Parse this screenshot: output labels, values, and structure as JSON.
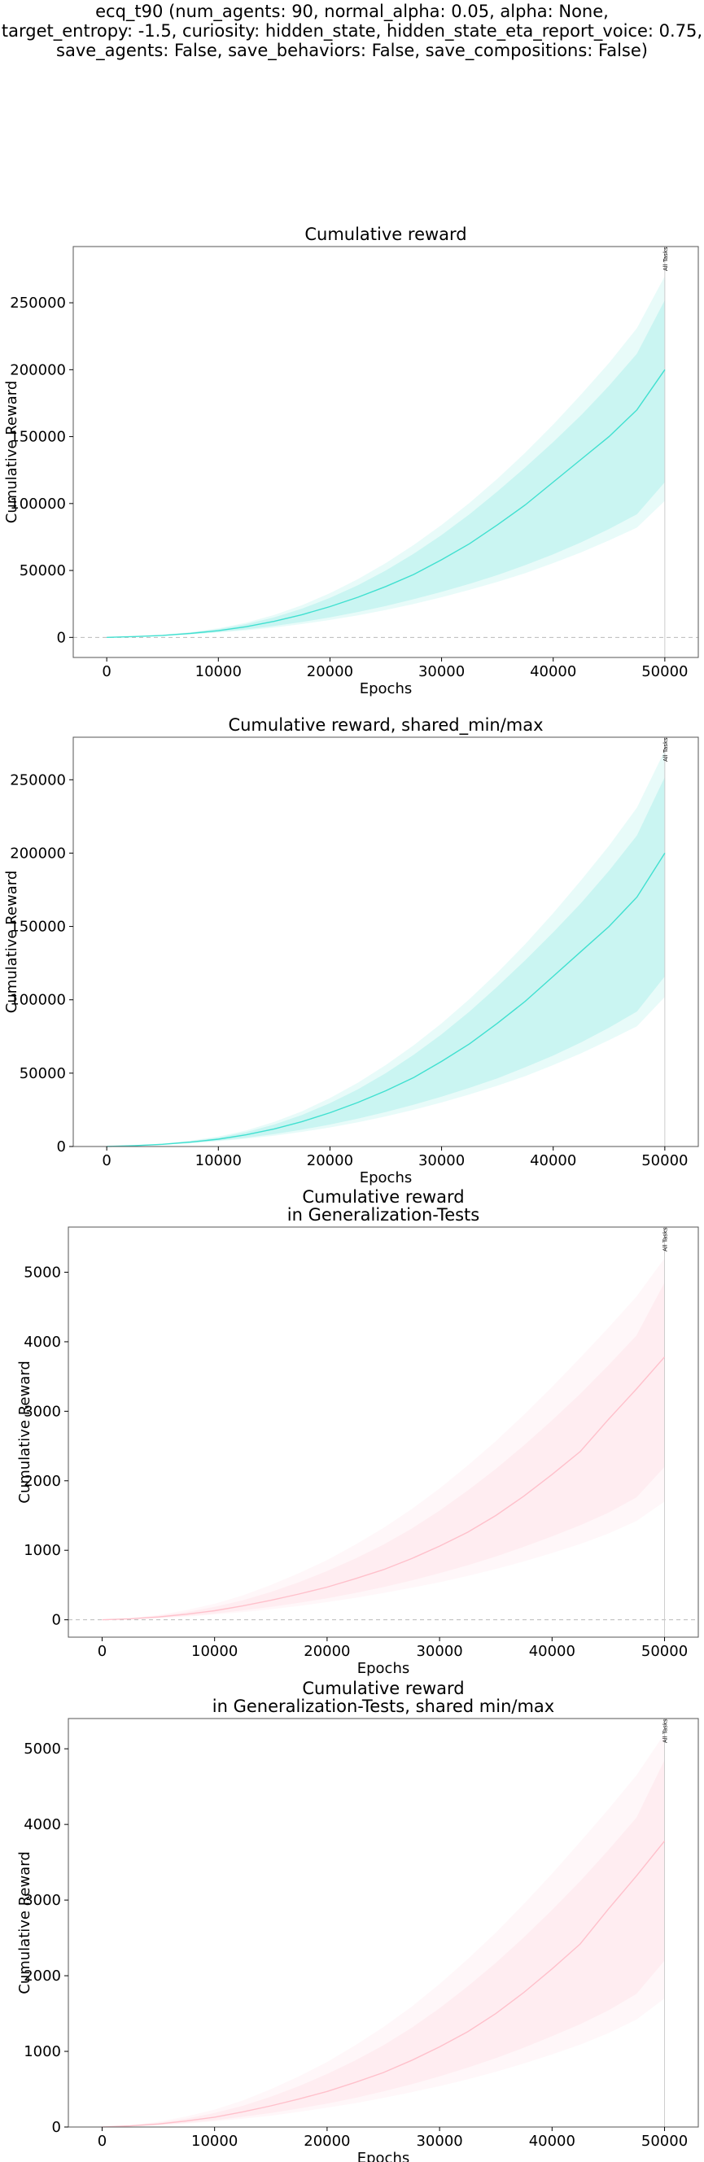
{
  "figure": {
    "title_lines": [
      "ecq_t90 (num_agents: 90, normal_alpha: 0.05, alpha: None,",
      "target_entropy: -1.5, curiosity: hidden_state, hidden_state_eta_report_voice: 0.75,",
      "save_agents: False, save_behaviors: False, save_compositions: False)"
    ]
  },
  "colors": {
    "reward": "#40E0D0",
    "generalization": "#FFC0CB",
    "frame": "#555555",
    "zero_line": "#bbbbbb",
    "marker_line": "#cccccc"
  },
  "chart_data": [
    {
      "type": "line",
      "title": [
        "Cumulative reward"
      ],
      "xlabel": "Epochs",
      "ylabel": "Cumulative Reward",
      "xlim": [
        -3000,
        53000
      ],
      "ylim": [
        -15000,
        292000
      ],
      "xticks": [
        0,
        10000,
        20000,
        30000,
        40000,
        50000
      ],
      "yticks": [
        0,
        50000,
        100000,
        150000,
        200000,
        250000
      ],
      "zero_line": true,
      "color_key": "reward",
      "marker": {
        "x": 50000,
        "label": "All Tasks"
      },
      "x": [
        0,
        2500,
        5000,
        7500,
        10000,
        12500,
        15000,
        17500,
        20000,
        22500,
        25000,
        27500,
        30000,
        32500,
        35000,
        37500,
        40000,
        42500,
        45000,
        47500,
        50000
      ],
      "series": [
        {
          "role": "mean",
          "values": [
            0,
            600,
            1500,
            3000,
            5000,
            8000,
            12000,
            17000,
            23000,
            30000,
            38000,
            47000,
            58000,
            70000,
            84000,
            99000,
            116000,
            133000,
            150000,
            170000,
            200000
          ]
        },
        {
          "role": "inner_low",
          "values": [
            0,
            500,
            1200,
            2400,
            4000,
            6000,
            8500,
            11500,
            15000,
            19000,
            23500,
            28500,
            34000,
            40000,
            46500,
            54000,
            62000,
            71000,
            81000,
            92000,
            116000
          ]
        },
        {
          "role": "inner_high",
          "values": [
            0,
            700,
            1800,
            3600,
            6100,
            9900,
            15000,
            21500,
            29500,
            39000,
            50000,
            62500,
            76500,
            92000,
            109000,
            127000,
            146000,
            166000,
            188000,
            212000,
            252000
          ]
        },
        {
          "role": "outer_low",
          "values": [
            0,
            450,
            1100,
            2200,
            3600,
            5300,
            7400,
            10000,
            13000,
            16500,
            20500,
            25000,
            30000,
            35500,
            41500,
            48000,
            55500,
            63500,
            72500,
            82000,
            102000
          ]
        },
        {
          "role": "outer_high",
          "values": [
            0,
            800,
            2000,
            4000,
            6800,
            11000,
            16800,
            24000,
            33000,
            43500,
            55500,
            69000,
            84000,
            100500,
            118500,
            138000,
            159000,
            181500,
            205000,
            231000,
            270000
          ]
        }
      ]
    },
    {
      "type": "line",
      "title": [
        "Cumulative reward, shared_min/max"
      ],
      "xlabel": "Epochs",
      "ylabel": "Cumulative Reward",
      "xlim": [
        -3000,
        53000
      ],
      "ylim": [
        0,
        279000
      ],
      "xticks": [
        0,
        10000,
        20000,
        30000,
        40000,
        50000
      ],
      "yticks": [
        0,
        50000,
        100000,
        150000,
        200000,
        250000
      ],
      "zero_line": false,
      "color_key": "reward",
      "marker": {
        "x": 50000,
        "label": "All Tasks"
      },
      "x": [
        0,
        2500,
        5000,
        7500,
        10000,
        12500,
        15000,
        17500,
        20000,
        22500,
        25000,
        27500,
        30000,
        32500,
        35000,
        37500,
        40000,
        42500,
        45000,
        47500,
        50000
      ],
      "series": [
        {
          "role": "mean",
          "values": [
            0,
            600,
            1500,
            3000,
            5000,
            8000,
            12000,
            17000,
            23000,
            30000,
            38000,
            47000,
            58000,
            70000,
            84000,
            99000,
            116000,
            133000,
            150000,
            170000,
            200000
          ]
        },
        {
          "role": "inner_low",
          "values": [
            0,
            500,
            1200,
            2400,
            4000,
            6000,
            8500,
            11500,
            15000,
            19000,
            23500,
            28500,
            34000,
            40000,
            46500,
            54000,
            62000,
            71000,
            81000,
            92000,
            116000
          ]
        },
        {
          "role": "inner_high",
          "values": [
            0,
            700,
            1800,
            3600,
            6100,
            9900,
            15000,
            21500,
            29500,
            39000,
            50000,
            62500,
            76500,
            92000,
            109000,
            127000,
            146000,
            166000,
            188000,
            212000,
            252000
          ]
        },
        {
          "role": "outer_low",
          "values": [
            0,
            450,
            1100,
            2200,
            3600,
            5300,
            7400,
            10000,
            13000,
            16500,
            20500,
            25000,
            30000,
            35500,
            41500,
            48000,
            55500,
            63500,
            72500,
            82000,
            102000
          ]
        },
        {
          "role": "outer_high",
          "values": [
            0,
            800,
            2000,
            4000,
            6800,
            11000,
            16800,
            24000,
            33000,
            43500,
            55500,
            69000,
            84000,
            100500,
            118500,
            138000,
            159000,
            181500,
            205000,
            231000,
            270000
          ]
        }
      ]
    },
    {
      "type": "line",
      "title": [
        "Cumulative reward",
        "in Generalization-Tests"
      ],
      "xlabel": "Epochs",
      "ylabel": "Cumulative Reward",
      "xlim": [
        -3000,
        53000
      ],
      "ylim": [
        -250,
        5650
      ],
      "xticks": [
        0,
        10000,
        20000,
        30000,
        40000,
        50000
      ],
      "yticks": [
        0,
        1000,
        2000,
        3000,
        4000,
        5000
      ],
      "zero_line": true,
      "color_key": "generalization",
      "marker": {
        "x": 50000,
        "label": "All Tasks"
      },
      "x": [
        0,
        2500,
        5000,
        7500,
        10000,
        12500,
        15000,
        17500,
        20000,
        22500,
        25000,
        27500,
        30000,
        32500,
        35000,
        37500,
        40000,
        42500,
        45000,
        47500,
        50000
      ],
      "series": [
        {
          "role": "mean",
          "values": [
            0,
            15,
            40,
            80,
            130,
            200,
            280,
            370,
            470,
            590,
            720,
            880,
            1060,
            1260,
            1500,
            1780,
            2090,
            2420,
            2880,
            3320,
            3780
          ]
        },
        {
          "role": "inner_low",
          "values": [
            0,
            10,
            28,
            55,
            90,
            135,
            185,
            245,
            310,
            385,
            470,
            565,
            670,
            785,
            910,
            1050,
            1200,
            1360,
            1540,
            1760,
            2200
          ]
        },
        {
          "role": "inner_high",
          "values": [
            0,
            20,
            55,
            110,
            185,
            280,
            400,
            540,
            700,
            880,
            1080,
            1310,
            1570,
            1860,
            2170,
            2510,
            2870,
            3250,
            3660,
            4090,
            4850
          ]
        },
        {
          "role": "outer_low",
          "values": [
            0,
            8,
            22,
            45,
            75,
            110,
            150,
            200,
            255,
            315,
            385,
            460,
            540,
            630,
            730,
            840,
            960,
            1090,
            1240,
            1420,
            1700
          ]
        },
        {
          "role": "outer_high",
          "values": [
            0,
            25,
            70,
            140,
            230,
            350,
            500,
            670,
            860,
            1080,
            1320,
            1590,
            1890,
            2220,
            2570,
            2950,
            3350,
            3770,
            4200,
            4650,
            5200
          ]
        }
      ]
    },
    {
      "type": "line",
      "title": [
        "Cumulative reward",
        "in Generalization-Tests, shared min/max"
      ],
      "xlabel": "Epochs",
      "ylabel": "Cumulative Reward",
      "xlim": [
        -3000,
        53000
      ],
      "ylim": [
        0,
        5400
      ],
      "xticks": [
        0,
        10000,
        20000,
        30000,
        40000,
        50000
      ],
      "yticks": [
        0,
        1000,
        2000,
        3000,
        4000,
        5000
      ],
      "zero_line": false,
      "color_key": "generalization",
      "marker": {
        "x": 50000,
        "label": "All Tasks"
      },
      "x": [
        0,
        2500,
        5000,
        7500,
        10000,
        12500,
        15000,
        17500,
        20000,
        22500,
        25000,
        27500,
        30000,
        32500,
        35000,
        37500,
        40000,
        42500,
        45000,
        47500,
        50000
      ],
      "series": [
        {
          "role": "mean",
          "values": [
            0,
            15,
            40,
            80,
            130,
            200,
            280,
            370,
            470,
            590,
            720,
            880,
            1060,
            1260,
            1500,
            1780,
            2090,
            2420,
            2880,
            3320,
            3780
          ]
        },
        {
          "role": "inner_low",
          "values": [
            0,
            10,
            28,
            55,
            90,
            135,
            185,
            245,
            310,
            385,
            470,
            565,
            670,
            785,
            910,
            1050,
            1200,
            1360,
            1540,
            1760,
            2200
          ]
        },
        {
          "role": "inner_high",
          "values": [
            0,
            20,
            55,
            110,
            185,
            280,
            400,
            540,
            700,
            880,
            1080,
            1310,
            1570,
            1860,
            2170,
            2510,
            2870,
            3250,
            3660,
            4090,
            4850
          ]
        },
        {
          "role": "outer_low",
          "values": [
            0,
            8,
            22,
            45,
            75,
            110,
            150,
            200,
            255,
            315,
            385,
            460,
            540,
            630,
            730,
            840,
            960,
            1090,
            1240,
            1420,
            1700
          ]
        },
        {
          "role": "outer_high",
          "values": [
            0,
            25,
            70,
            140,
            230,
            350,
            500,
            670,
            860,
            1080,
            1320,
            1590,
            1890,
            2220,
            2570,
            2950,
            3350,
            3770,
            4200,
            4650,
            5200
          ]
        }
      ]
    }
  ]
}
